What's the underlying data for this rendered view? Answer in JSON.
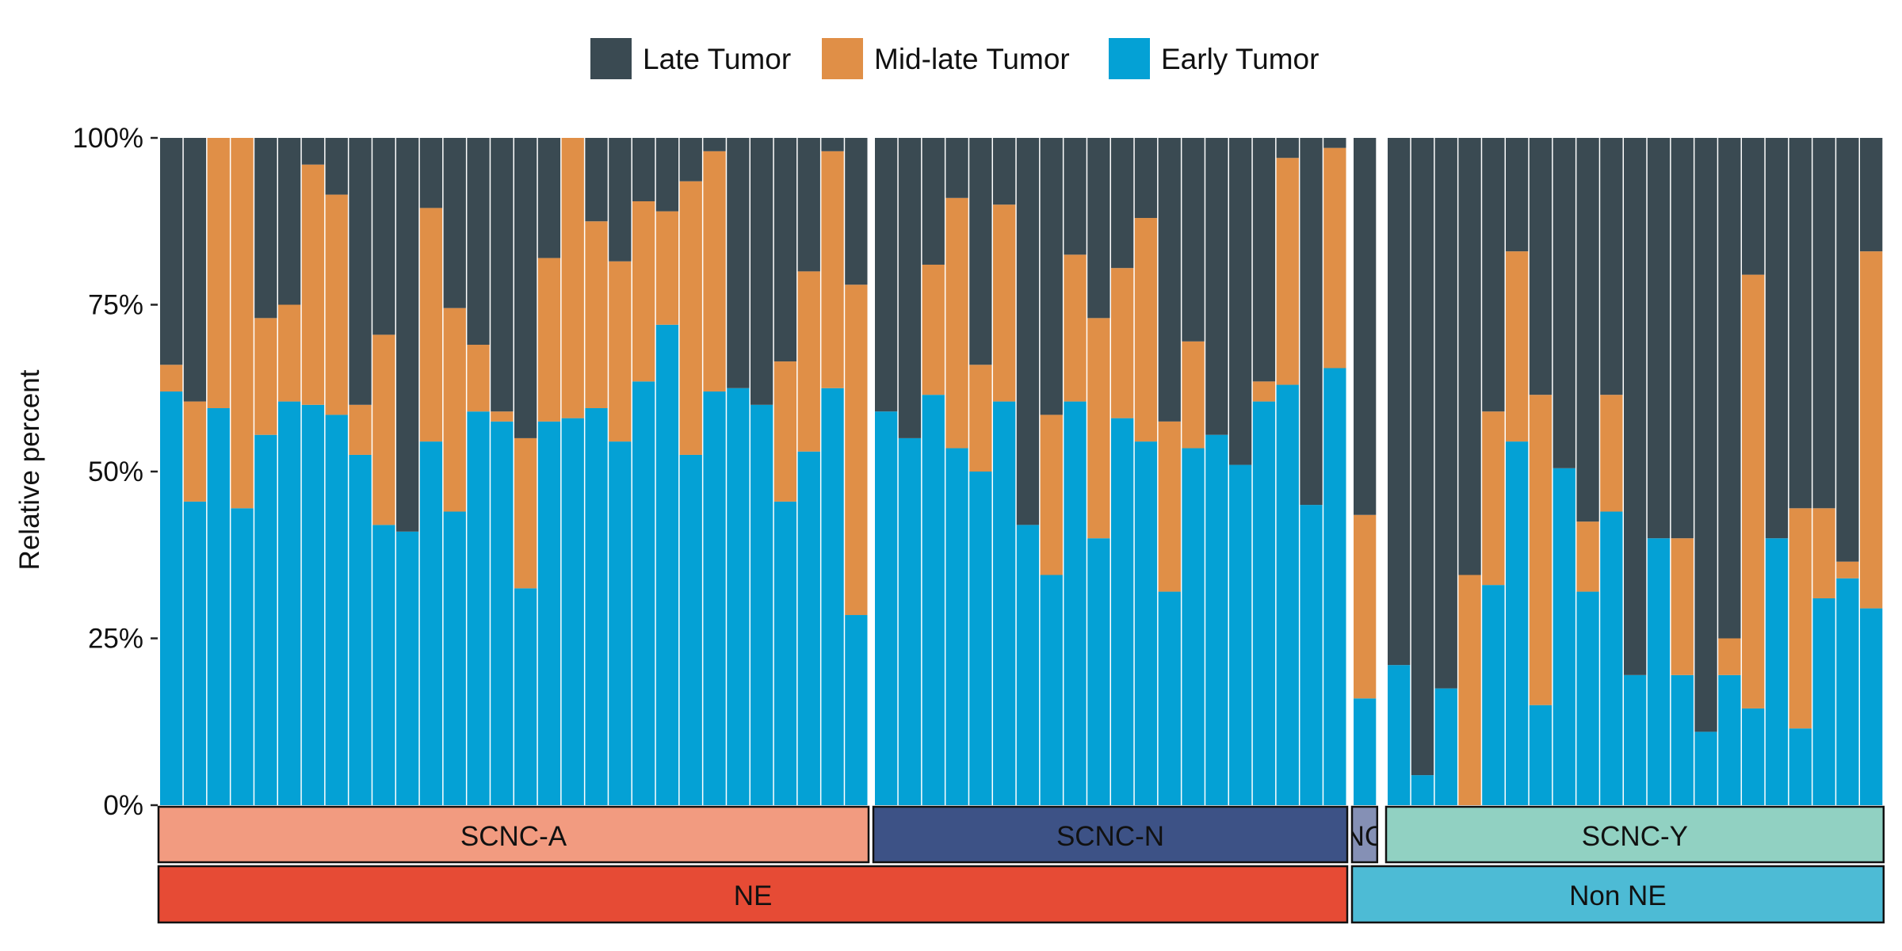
{
  "chart_data": {
    "type": "bar",
    "stacked": "percent",
    "ylabel": "Relative percent",
    "xlabel": "",
    "ylim": [
      0,
      100
    ],
    "yticks": [
      "0%",
      "25%",
      "50%",
      "75%",
      "100%"
    ],
    "legend": {
      "placement": "top",
      "entries": [
        "Late Tumor",
        "Mid-late Tumor",
        "Early Tumor"
      ]
    },
    "colors": {
      "Late Tumor": "#3a4a52",
      "Mid-late Tumor": "#e08f47",
      "Early Tumor": "#04a1d5"
    },
    "panels": [
      {
        "label": "SCNC-A",
        "color": "#f29b80",
        "text_color": "#111111",
        "early": [
          62,
          45.5,
          59.5,
          44.5,
          55.5,
          60.5,
          60,
          58.5,
          52.5,
          42,
          41,
          54.5,
          44,
          59,
          57.5,
          32.5,
          57.5,
          58,
          59.5,
          54.5,
          63.5,
          72,
          52.5,
          62,
          62.5,
          60,
          45.5,
          53,
          62.5,
          28.5
        ],
        "midlate": [
          4,
          15,
          40.5,
          55.5,
          17.5,
          14.5,
          36,
          33,
          7.5,
          28.5,
          0,
          35,
          30.5,
          10,
          1.5,
          22.5,
          24.5,
          42,
          28,
          27,
          27,
          17,
          41,
          36,
          0,
          0,
          21,
          27,
          35.5,
          49.5
        ]
      },
      {
        "label": "SCNC-N",
        "color": "#3d5286",
        "text_color": "#111111",
        "early": [
          59,
          55,
          61.5,
          53.5,
          50,
          60.5,
          42,
          34.5,
          60.5,
          40,
          58,
          54.5,
          32,
          53.5,
          55.5,
          51,
          60.5,
          63,
          45,
          65.5
        ],
        "midlate": [
          0,
          0,
          19.5,
          37.5,
          16,
          29.5,
          0,
          24,
          22,
          33,
          22.5,
          33.5,
          25.5,
          16,
          0,
          0,
          3,
          34,
          0,
          33
        ]
      },
      {
        "label": "NC",
        "color": "#8590b5",
        "text_color": "#111111",
        "early": [
          16
        ],
        "midlate": [
          27.5
        ]
      },
      {
        "label": "SCNC-Y",
        "color": "#91d1c2",
        "text_color": "#111111",
        "early": [
          21,
          4.5,
          17.5,
          0,
          33,
          54.5,
          15,
          50.5,
          32,
          44,
          19.5,
          40,
          19.5,
          11,
          19.5,
          14.5,
          40,
          11.5,
          31,
          34,
          29.5
        ],
        "midlate": [
          0,
          0,
          0,
          34.5,
          26,
          28.5,
          46.5,
          0,
          10.5,
          17.5,
          0,
          0,
          20.5,
          0,
          5.5,
          65,
          0,
          33,
          13.5,
          2.5,
          53.5
        ]
      }
    ],
    "groups": [
      {
        "label": "NE",
        "panels": [
          "SCNC-A",
          "SCNC-N"
        ],
        "color": "#e64b35",
        "text_color": "#111111"
      },
      {
        "label": "Non NE",
        "panels": [
          "NC",
          "SCNC-Y"
        ],
        "color": "#4dbbd5",
        "text_color": "#111111"
      }
    ]
  }
}
